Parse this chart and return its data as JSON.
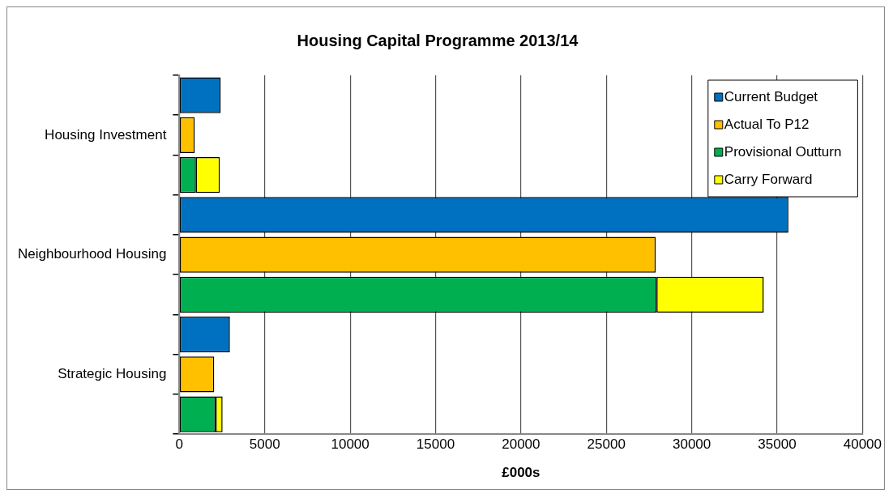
{
  "chart_data": {
    "type": "bar",
    "orientation": "horizontal",
    "stacked": true,
    "title": "Housing Capital Programme 2013/14",
    "xlabel": "£000s",
    "categories": [
      null,
      "Housing Investment",
      null,
      null,
      "Neighbourhood Housing",
      null,
      null,
      "Strategic Housing",
      null
    ],
    "series": [
      {
        "name": "Current Budget",
        "color": "#0070c0",
        "values": [
          2420,
          null,
          null,
          35660,
          null,
          null,
          2960,
          null,
          null
        ]
      },
      {
        "name": "Actual To P12",
        "color": "#ffc000",
        "values": [
          null,
          900,
          null,
          null,
          27890,
          null,
          null,
          2040,
          null
        ]
      },
      {
        "name": "Provisional Outturn",
        "color": "#00b050",
        "values": [
          null,
          null,
          970,
          null,
          null,
          27940,
          null,
          null,
          2120
        ]
      },
      {
        "name": "Carry Forward",
        "color": "#ffff00",
        "values": [
          null,
          null,
          1400,
          null,
          null,
          6280,
          null,
          null,
          410
        ]
      }
    ],
    "xlim": [
      0,
      40000
    ],
    "xticks": [
      0,
      5000,
      10000,
      15000,
      20000,
      25000,
      30000,
      35000,
      40000
    ],
    "grid": "x",
    "legend": "top right"
  }
}
